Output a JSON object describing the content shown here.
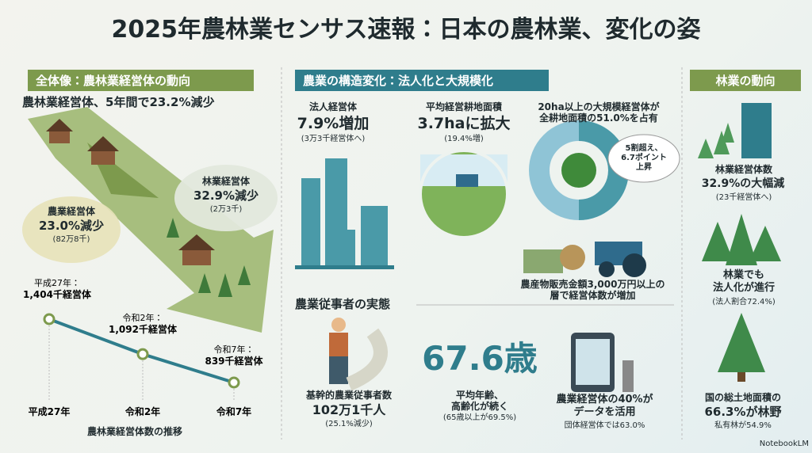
{
  "title": "2025年農林業センサス速報：日本の農林業、変化の姿",
  "overview": {
    "heading": "全体像：農林業経営体の動向",
    "headline": "農林業経営体、5年間で23.2%減少",
    "farm": {
      "label": "農業経営体",
      "value": "23.0%減少",
      "note": "(82万8千)"
    },
    "forest": {
      "label": "林業経営体",
      "value": "32.9%減少",
      "note": "(2万3千)"
    },
    "chart": {
      "type": "line",
      "categories": [
        "平成27年",
        "令和2年",
        "令和7年"
      ],
      "values": [
        1404,
        1092,
        839
      ],
      "point_labels": [
        "平成27年：",
        "令和2年：",
        "令和7年："
      ],
      "value_labels": [
        "1,404千経営体",
        "1,092千経営体",
        "839千経営体"
      ],
      "caption": "農林業経営体数の推移",
      "color": "#2f7d8c"
    }
  },
  "structure": {
    "heading": "農業の構造変化：法人化と大規模化",
    "corp": {
      "label": "法人経営体",
      "value": "7.9%増加",
      "note": "(3万3千経営体へ)"
    },
    "area": {
      "label": "平均経営耕地面積",
      "value": "3.7haに拡大",
      "note": "(19.4%増)"
    },
    "large": {
      "label": "20ha以上の大規模経営体が\n全耕地面積の51.0%を占有",
      "callout": "5割超え、\n6.7ポイント\n上昇"
    },
    "sales": "農産物販売金額3,000万円以上の\n層で経営体数が増加"
  },
  "workers": {
    "heading": "農業従事者の実態",
    "core": {
      "label": "基幹的農業従事者数",
      "value": "102万1千人",
      "note": "(25.1%減少)"
    },
    "age": {
      "value": "67.6歳",
      "label": "平均年齢、\n高齢化が続く",
      "note": "(65歳以上が69.5%)"
    },
    "data": {
      "label": "農業経営体の40%が\nデータを活用",
      "note": "団体経営体では63.0%"
    }
  },
  "forestry": {
    "heading": "林業の動向",
    "items": [
      {
        "label": "林業経営体数",
        "value": "32.9%の大幅減",
        "note": "(23千経営体へ)"
      },
      {
        "label": "林業でも\n法人化が進行",
        "note": "(法人割合72.4%)"
      },
      {
        "label": "国の総土地面積の",
        "value": "66.3%が林野",
        "note": "私有林が54.9%"
      }
    ]
  },
  "footer": "NotebookLM"
}
